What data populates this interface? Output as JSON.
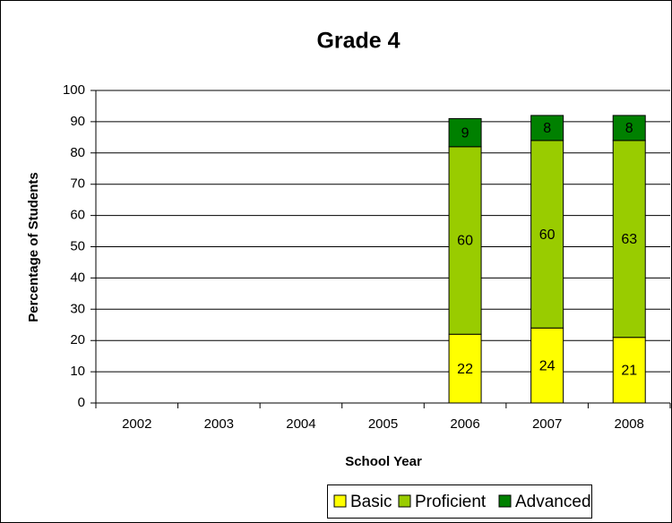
{
  "chart_data": {
    "type": "stacked_bar",
    "title": "Grade 4",
    "x_label": "School Year",
    "y_label": "Percentage of Students",
    "categories": [
      "2002",
      "2003",
      "2004",
      "2005",
      "2006",
      "2007",
      "2008"
    ],
    "series": [
      {
        "name": "Basic",
        "color": "#ffff00",
        "values": [
          null,
          null,
          null,
          null,
          22,
          24,
          21
        ]
      },
      {
        "name": "Proficient",
        "color": "#99cc00",
        "values": [
          null,
          null,
          null,
          null,
          60,
          60,
          63
        ]
      },
      {
        "name": "Advanced",
        "color": "#008000",
        "values": [
          null,
          null,
          null,
          null,
          9,
          8,
          8
        ]
      }
    ],
    "ylim": [
      0,
      100
    ],
    "yticks": [
      0,
      10,
      20,
      30,
      40,
      50,
      60,
      70,
      80,
      90,
      100
    ],
    "grid": true,
    "legend": "bottom"
  }
}
